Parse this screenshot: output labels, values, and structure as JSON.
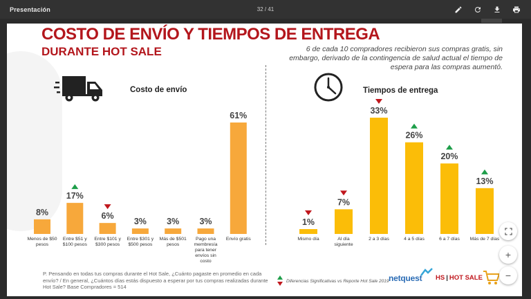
{
  "viewer": {
    "title": "Presentación",
    "page_indicator": "32 / 41",
    "tools": [
      "edit-icon",
      "refresh-icon",
      "download-icon",
      "print-icon"
    ]
  },
  "slide": {
    "title_line1": "COSTO DE ENVÍO Y TIEMPOS DE ENTREGA",
    "title_line2": "DURANTE HOT SALE",
    "subtitle": "6 de cada 10 compradores recibieron sus compras gratis, sin embargo, derivado de la contingencia de salud actual el tiempo de espera para las compras aumentó.",
    "accent_color": "#b3161c",
    "bar_color": "#f7a83b",
    "bar_color_2": "#fbbd08",
    "footnote": "P. Pensando en todas tus compras durante el Hot Sale, ¿Cuánto pagaste en promedio en cada envío? / En general, ¿Cuántos días estás dispuesto a esperar por tus compras realizadas durante Hot Sale? Base Compradores = 514",
    "legend_text": "Diferencias Significativas vs Reporte Hot Sale 2019",
    "logo_netquest": "netquest",
    "logo_hs": "HS",
    "logo_hotsale": "HOT SALE"
  },
  "chart_data": [
    {
      "type": "bar",
      "title": "Costo de envío",
      "categories": [
        "Menos de $50 pesos",
        "Entre $51 y $100 pesos",
        "Entre $101 y $300 pesos",
        "Entre $301 y $500 pesos",
        "Más de $501 pesos",
        "Pago una membresía para tener envíos sin costo",
        "Envío gratis"
      ],
      "values": [
        8,
        17,
        6,
        3,
        3,
        3,
        61
      ],
      "value_labels": [
        "8%",
        "17%",
        "6%",
        "3%",
        "3%",
        "3%",
        "61%"
      ],
      "significance": [
        null,
        "up",
        "down",
        null,
        null,
        null,
        null
      ],
      "unit": "%",
      "ylim": [
        0,
        61
      ]
    },
    {
      "type": "bar",
      "title": "Tiempos de entrega",
      "categories": [
        "Mismo día",
        "Al día siguiente",
        "2 a 3 días",
        "4 a 5 días",
        "6 a 7 días",
        "Más de 7 días"
      ],
      "values": [
        1,
        7,
        33,
        26,
        20,
        13
      ],
      "value_labels": [
        "1%",
        "7%",
        "33%",
        "26%",
        "20%",
        "13%"
      ],
      "significance": [
        "down",
        "down",
        "down",
        "up",
        "up",
        "up"
      ],
      "unit": "%",
      "ylim": [
        0,
        33
      ]
    }
  ],
  "controls": {
    "fit_icon": "fit-screen-icon",
    "zoom_in": "+",
    "zoom_out": "−"
  }
}
